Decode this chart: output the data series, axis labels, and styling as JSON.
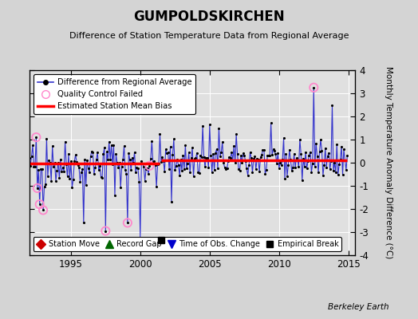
{
  "title": "GUMPOLDSKIRCHEN",
  "subtitle": "Difference of Station Temperature Data from Regional Average",
  "ylabel": "Monthly Temperature Anomaly Difference (°C)",
  "credit": "Berkeley Earth",
  "xlim": [
    1992.0,
    2015.5
  ],
  "ylim": [
    -4,
    4
  ],
  "yticks": [
    -4,
    -3,
    -2,
    -1,
    0,
    1,
    2,
    3,
    4
  ],
  "xticks": [
    1995,
    2000,
    2005,
    2010,
    2015
  ],
  "bg_color": "#d4d4d4",
  "plot_bg_color": "#e0e0e0",
  "grid_color": "#ffffff",
  "line_color": "#3333cc",
  "dot_color": "#000000",
  "bias_color": "#ff0000",
  "qc_color": "#ff88cc",
  "segment1_bias": -0.05,
  "segment2_bias": 0.1,
  "segment1_end": 2001.5,
  "segment2_start": 2001.5,
  "empirical_break_x": 2001.5,
  "empirical_break_y": -3.35,
  "seed": 42
}
